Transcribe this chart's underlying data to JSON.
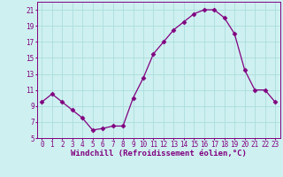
{
  "x": [
    0,
    1,
    2,
    3,
    4,
    5,
    6,
    7,
    8,
    9,
    10,
    11,
    12,
    13,
    14,
    15,
    16,
    17,
    18,
    19,
    20,
    21,
    22,
    23
  ],
  "y": [
    9.5,
    10.5,
    9.5,
    8.5,
    7.5,
    6.0,
    6.2,
    6.5,
    6.5,
    10.0,
    12.5,
    15.5,
    17.0,
    18.5,
    19.5,
    20.5,
    21.0,
    21.0,
    20.0,
    18.0,
    13.5,
    11.0,
    11.0,
    9.5
  ],
  "line_color": "#800080",
  "marker": "D",
  "marker_size": 2.5,
  "xlabel": "Windchill (Refroidissement éolien,°C)",
  "xlim_min": -0.5,
  "xlim_max": 23.5,
  "ylim_min": 5,
  "ylim_max": 22,
  "yticks": [
    5,
    7,
    9,
    11,
    13,
    15,
    17,
    19,
    21
  ],
  "xticks": [
    0,
    1,
    2,
    3,
    4,
    5,
    6,
    7,
    8,
    9,
    10,
    11,
    12,
    13,
    14,
    15,
    16,
    17,
    18,
    19,
    20,
    21,
    22,
    23
  ],
  "background_color": "#cff0f0",
  "grid_color": "#aadddd",
  "font_color": "#800080",
  "tick_fontsize": 5.5,
  "xlabel_fontsize": 6.5
}
